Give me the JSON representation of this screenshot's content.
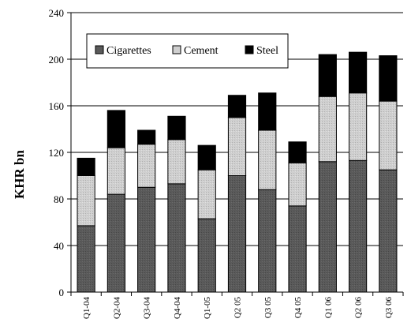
{
  "chart_data": {
    "type": "bar",
    "stacked": true,
    "categories": [
      "Q1-04",
      "Q2-04",
      "Q3-04",
      "Q4-04",
      "Q1-05",
      "Q2 05",
      "Q3 05",
      "Q4 05",
      "Q1 06",
      "Q2 06",
      "Q3 06"
    ],
    "series": [
      {
        "name": "Cigarettes",
        "values": [
          57,
          84,
          90,
          93,
          63,
          100,
          88,
          74,
          112,
          113,
          105
        ],
        "color": "#595959"
      },
      {
        "name": "Cement",
        "values": [
          43,
          40,
          37,
          38,
          42,
          50,
          51,
          37,
          56,
          58,
          59
        ],
        "color": "#c8c8c8"
      },
      {
        "name": "Steel",
        "values": [
          15,
          32,
          12,
          20,
          21,
          19,
          32,
          18,
          36,
          35,
          39
        ],
        "color": "#000000"
      }
    ],
    "title": "",
    "xlabel": "",
    "ylabel": "KHR bn",
    "ylim": [
      0,
      240
    ],
    "yticks": [
      0,
      40,
      80,
      120,
      160,
      200,
      240
    ],
    "grid": true,
    "legend_position": "top"
  }
}
